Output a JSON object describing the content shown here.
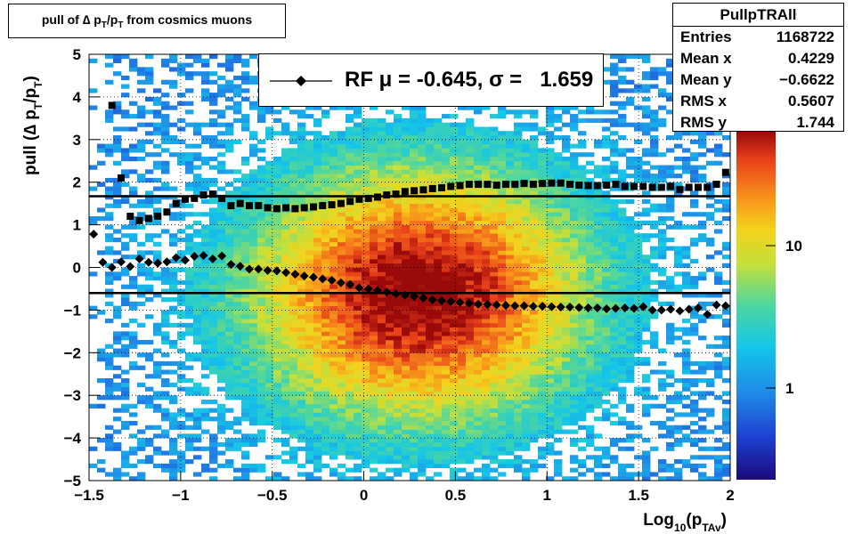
{
  "title": {
    "text": "pull of ∆ p",
    "sub1": "T",
    "mid": "/p",
    "sub2": "T",
    "tail": " from cosmics muons"
  },
  "stats": {
    "name": "PullpTRAll",
    "rows": [
      {
        "key": "Entries",
        "value": "1168722"
      },
      {
        "key": "Mean x",
        "value": "0.4229"
      },
      {
        "key": "Mean y",
        "value": "−0.6622"
      },
      {
        "key": "RMS x",
        "value": "0.5607"
      },
      {
        "key": "RMS y",
        "value": "1.744"
      }
    ]
  },
  "legend": {
    "text": "RF μ = -0.645, σ =   1.659"
  },
  "axis_titles": {
    "x": {
      "main": "Log",
      "sub": "10",
      "open": "(p",
      "sub2": "TAv",
      "close": ")"
    },
    "y": {
      "main": "pull (∆ p",
      "sub": "T",
      "mid": "/p",
      "sub2": "T",
      "close": ")"
    }
  },
  "colorbar": {
    "tick_labels": [
      "1",
      "10"
    ]
  },
  "chart_data": {
    "type": "heatmap",
    "xlim": [
      -1.5,
      2
    ],
    "ylim": [
      -5,
      5
    ],
    "x_ticks": [
      -1.5,
      -1,
      -0.5,
      0,
      0.5,
      1,
      1.5,
      2
    ],
    "x_tick_labels": [
      "−1.5",
      "−1",
      "−0.5",
      "0",
      "0.5",
      "1",
      "1.5",
      "2"
    ],
    "y_ticks": [
      -5,
      -4,
      -3,
      -2,
      -1,
      0,
      1,
      2,
      3,
      4,
      5
    ],
    "y_tick_labels": [
      "−5",
      "−4",
      "−3",
      "−2",
      "−1",
      "0",
      "1",
      "2",
      "3",
      "4",
      "5"
    ],
    "grid": true,
    "z_scale": "log",
    "reference_lines": [
      -0.6,
      1.67
    ],
    "density": {
      "center_x": 0.3,
      "center_y": -0.6,
      "sigma_x": 0.5,
      "sigma_y": 1.6
    },
    "series": [
      {
        "marker": "diamond",
        "x": [
          -1.475,
          -1.425,
          -1.375,
          -1.325,
          -1.275,
          -1.225,
          -1.175,
          -1.125,
          -1.075,
          -1.025,
          -0.975,
          -0.925,
          -0.875,
          -0.825,
          -0.775,
          -0.725,
          -0.675,
          -0.625,
          -0.575,
          -0.525,
          -0.475,
          -0.425,
          -0.375,
          -0.325,
          -0.275,
          -0.225,
          -0.175,
          -0.125,
          -0.075,
          -0.025,
          0.025,
          0.075,
          0.125,
          0.175,
          0.225,
          0.275,
          0.325,
          0.375,
          0.425,
          0.475,
          0.525,
          0.575,
          0.625,
          0.675,
          0.725,
          0.775,
          0.825,
          0.875,
          0.925,
          0.975,
          1.025,
          1.075,
          1.125,
          1.175,
          1.225,
          1.275,
          1.325,
          1.375,
          1.425,
          1.475,
          1.525,
          1.575,
          1.625,
          1.675,
          1.725,
          1.775,
          1.825,
          1.875,
          1.925,
          1.975
        ],
        "y": [
          0.78,
          0.12,
          0.0,
          0.13,
          0.02,
          0.2,
          0.12,
          0.1,
          0.13,
          0.23,
          0.17,
          0.26,
          0.28,
          0.2,
          0.27,
          0.07,
          0.03,
          -0.04,
          -0.04,
          -0.07,
          -0.08,
          -0.12,
          -0.16,
          -0.2,
          -0.23,
          -0.27,
          -0.3,
          -0.36,
          -0.4,
          -0.48,
          -0.5,
          -0.54,
          -0.58,
          -0.62,
          -0.65,
          -0.68,
          -0.72,
          -0.76,
          -0.78,
          -0.8,
          -0.82,
          -0.84,
          -0.86,
          -0.87,
          -0.88,
          -0.89,
          -0.9,
          -0.9,
          -0.91,
          -0.91,
          -0.92,
          -0.93,
          -0.93,
          -0.94,
          -0.95,
          -0.95,
          -0.97,
          -0.96,
          -0.95,
          -0.96,
          -0.92,
          -1.0,
          -1.0,
          -0.98,
          -1.02,
          -0.98,
          -0.95,
          -1.1,
          -0.88,
          -0.9
        ]
      },
      {
        "marker": "square",
        "x": [
          -1.375,
          -1.325,
          -1.275,
          -1.225,
          -1.175,
          -1.125,
          -1.075,
          -1.025,
          -0.975,
          -0.925,
          -0.875,
          -0.825,
          -0.775,
          -0.725,
          -0.675,
          -0.625,
          -0.575,
          -0.525,
          -0.475,
          -0.425,
          -0.375,
          -0.325,
          -0.275,
          -0.225,
          -0.175,
          -0.125,
          -0.075,
          -0.025,
          0.025,
          0.075,
          0.125,
          0.175,
          0.225,
          0.275,
          0.325,
          0.375,
          0.425,
          0.475,
          0.525,
          0.575,
          0.625,
          0.675,
          0.725,
          0.775,
          0.825,
          0.875,
          0.925,
          0.975,
          1.025,
          1.075,
          1.125,
          1.175,
          1.225,
          1.275,
          1.325,
          1.375,
          1.425,
          1.475,
          1.525,
          1.575,
          1.625,
          1.675,
          1.725,
          1.775,
          1.825,
          1.875,
          1.925,
          1.975
        ],
        "y": [
          3.8,
          2.1,
          1.2,
          1.1,
          1.15,
          1.2,
          1.3,
          1.5,
          1.6,
          1.62,
          1.7,
          1.72,
          1.62,
          1.45,
          1.5,
          1.45,
          1.45,
          1.4,
          1.38,
          1.4,
          1.38,
          1.4,
          1.42,
          1.45,
          1.47,
          1.5,
          1.55,
          1.6,
          1.62,
          1.65,
          1.7,
          1.72,
          1.78,
          1.8,
          1.82,
          1.85,
          1.87,
          1.9,
          1.92,
          1.95,
          1.95,
          1.95,
          1.93,
          1.95,
          1.95,
          1.97,
          1.95,
          1.97,
          1.98,
          1.98,
          1.95,
          1.93,
          1.92,
          1.92,
          1.93,
          1.95,
          1.9,
          1.9,
          1.9,
          1.88,
          1.88,
          1.9,
          1.83,
          1.88,
          1.88,
          1.88,
          1.95,
          2.23
        ]
      }
    ]
  }
}
